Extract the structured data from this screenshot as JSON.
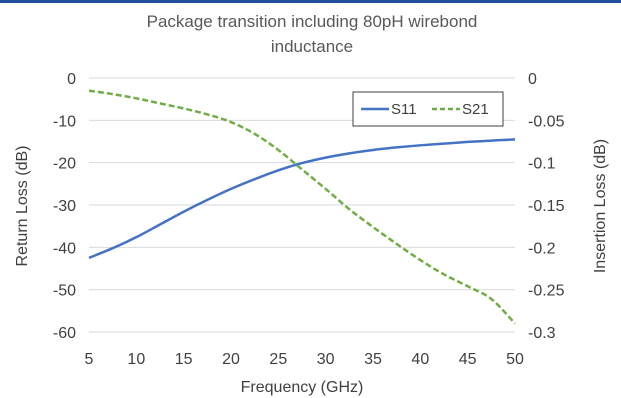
{
  "chart_data": {
    "type": "line",
    "title_lines": [
      "Package transition including 80pH wirebond",
      "inductance"
    ],
    "xlabel": "Frequency (GHz)",
    "ylabel_left": "Return Loss (dB)",
    "ylabel_right": "Insertion Loss (dB)",
    "xlim": [
      5,
      50
    ],
    "ylim_left": [
      -60,
      0
    ],
    "ylim_right": [
      -0.3,
      0
    ],
    "x_ticks": [
      "5",
      "10",
      "15",
      "20",
      "25",
      "30",
      "35",
      "40",
      "45",
      "50"
    ],
    "y_left_ticks": [
      "0",
      "-10",
      "-20",
      "-30",
      "-40",
      "-50",
      "-60"
    ],
    "y_right_ticks": [
      "0",
      "-0.05",
      "-0.1",
      "-0.15",
      "-0.2",
      "-0.25",
      "-0.3"
    ],
    "grid": "horizontal",
    "legend_position": "top-right",
    "series": [
      {
        "name": "S11",
        "axis": "left",
        "color": "#4472c4",
        "style": "solid",
        "x": [
          5,
          7.5,
          10,
          12.5,
          15,
          17.5,
          20,
          22.5,
          25,
          27.5,
          30,
          32.5,
          35,
          37.5,
          40,
          42.5,
          45,
          47.5,
          50
        ],
        "y": [
          -42.5,
          -40.2,
          -37.6,
          -34.6,
          -31.6,
          -28.8,
          -26.2,
          -23.9,
          -21.8,
          -20.1,
          -18.8,
          -17.8,
          -17.0,
          -16.4,
          -15.9,
          -15.5,
          -15.1,
          -14.8,
          -14.5
        ]
      },
      {
        "name": "S21",
        "axis": "right",
        "color": "#70ad47",
        "style": "dashed",
        "x": [
          5,
          7.5,
          10,
          12.5,
          15,
          17.5,
          20,
          22.5,
          25,
          27.5,
          30,
          32.5,
          35,
          37.5,
          40,
          42.5,
          45,
          47.5,
          50
        ],
        "y": [
          -0.015,
          -0.019,
          -0.024,
          -0.03,
          -0.036,
          -0.043,
          -0.052,
          -0.066,
          -0.085,
          -0.108,
          -0.131,
          -0.155,
          -0.176,
          -0.196,
          -0.215,
          -0.232,
          -0.246,
          -0.261,
          -0.29
        ]
      }
    ]
  }
}
